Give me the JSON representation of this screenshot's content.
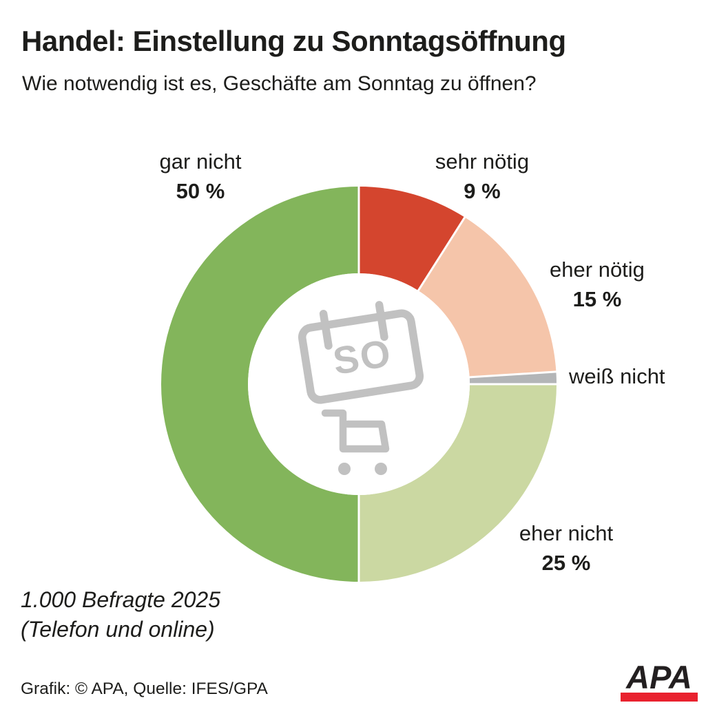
{
  "header": {
    "title": "Handel: Einstellung zu Sonntagsöffnung",
    "subtitle": "Wie notwendig ist es, Geschäfte am Sonntag zu öffnen?"
  },
  "chart_data": {
    "type": "pie",
    "subtype": "donut",
    "title": "Handel: Einstellung zu Sonntagsöffnung",
    "question": "Wie notwendig ist es, Geschäfte am Sonntag zu öffnen?",
    "unit": "percent",
    "total": 100,
    "start_angle_deg": 0,
    "direction": "clockwise-from-top",
    "segments": [
      {
        "label": "sehr nötig",
        "value": 9,
        "pct_label": "9 %",
        "color": "#d4452e"
      },
      {
        "label": "eher nötig",
        "value": 15,
        "pct_label": "15 %",
        "color": "#f5c5aa"
      },
      {
        "label": "weiß nicht",
        "value": 1,
        "pct_label": "",
        "color": "#b3b5b7"
      },
      {
        "label": "eher nicht",
        "value": 25,
        "pct_label": "25 %",
        "color": "#cbd8a2"
      },
      {
        "label": "gar nicht",
        "value": 50,
        "pct_label": "50 %",
        "color": "#83b55b"
      }
    ],
    "center_icon": {
      "calendar_text": "SO",
      "icons": [
        "calendar-icon",
        "shopping-cart-icon"
      ],
      "icon_color": "#c1c1c1"
    },
    "legend_position": "labels-around-donut"
  },
  "footnote": {
    "line1": "1.000 Befragte 2025",
    "line2": "(Telefon und online)"
  },
  "credit": "Grafik: © APA, Quelle: IFES/GPA",
  "logo": {
    "label": "APA",
    "text_color": "#231f20",
    "bar_color": "#e9212e"
  }
}
